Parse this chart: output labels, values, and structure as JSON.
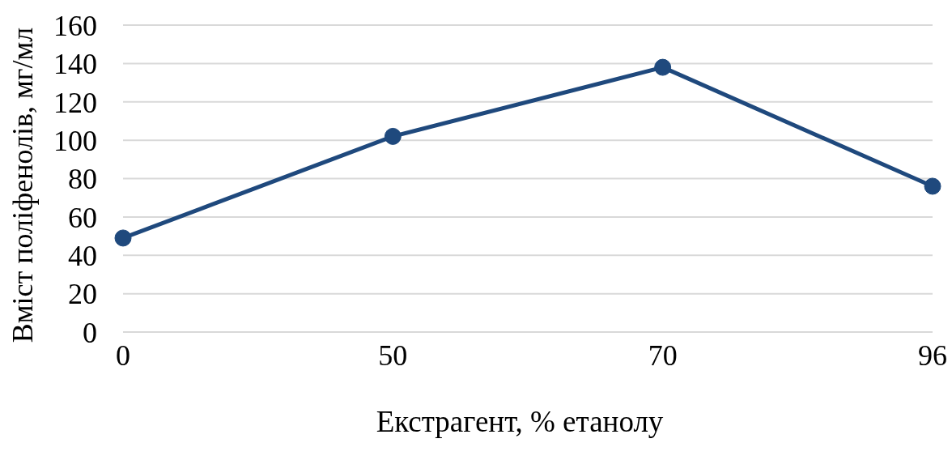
{
  "chart_data": {
    "type": "line",
    "xlabel": "Екстрагент, % етанолу",
    "ylabel": "Вміст поліфенолів, мг/мл",
    "categories": [
      "0",
      "50",
      "70",
      "96"
    ],
    "values": [
      49,
      102,
      138,
      76
    ],
    "color": "#1f497d",
    "ylim": [
      0,
      160
    ],
    "yticks": [
      0,
      20,
      40,
      60,
      80,
      100,
      120,
      140,
      160
    ],
    "grid": "y",
    "marker": "circle",
    "line_style": "solid"
  }
}
